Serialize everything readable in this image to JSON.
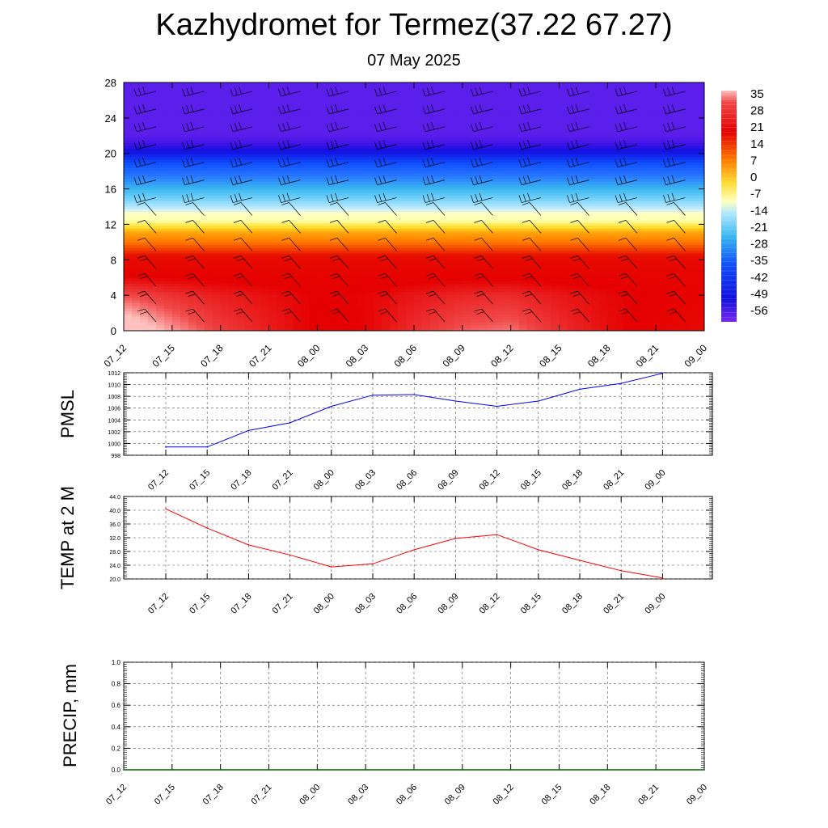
{
  "title": "Kazhydromet for Termez(37.22 67.27)",
  "subtitle": "07 May 2025",
  "chart_data": [
    {
      "type": "heatmap",
      "description": "Time-height cross-section of temperature with wind barbs",
      "x_tick_labels": [
        "07_12",
        "07_15",
        "07_18",
        "07_21",
        "08_00",
        "08_03",
        "08_06",
        "08_09",
        "08_12",
        "08_15",
        "08_18",
        "08_21",
        "09_00"
      ],
      "y_ticks": [
        0,
        4,
        8,
        12,
        16,
        20,
        24,
        28
      ],
      "ylim": [
        0,
        28
      ],
      "colorbar": {
        "labels": [
          "35",
          "28",
          "21",
          "14",
          "7",
          "0",
          "-7",
          "-14",
          "-21",
          "-28",
          "-35",
          "-42",
          "-49",
          "-56"
        ],
        "range": [
          -60,
          38
        ]
      },
      "temperature_profile_by_level": [
        {
          "level": 0,
          "temp": 30
        },
        {
          "level": 4,
          "temp": 28
        },
        {
          "level": 8,
          "temp": 22
        },
        {
          "level": 11,
          "temp": 10
        },
        {
          "level": 13,
          "temp": -10
        },
        {
          "level": 16,
          "temp": -28
        },
        {
          "level": 19,
          "temp": -45
        },
        {
          "level": 21,
          "temp": -56
        },
        {
          "level": 22,
          "temp": -58
        },
        {
          "level": 28,
          "temp": -58
        }
      ],
      "surface_temp_by_time": [
        40.0,
        34.5,
        29.9,
        26.9,
        23.5,
        24.3,
        28.4,
        31.8,
        32.8,
        28.5,
        25.3,
        22.4,
        20.2
      ]
    },
    {
      "type": "line",
      "ylabel": "PMSL",
      "x_tick_labels": [
        "07_12",
        "07_15",
        "07_18",
        "07_21",
        "08_00",
        "08_03",
        "08_06",
        "08_09",
        "08_12",
        "08_15",
        "08_18",
        "08_21",
        "09_00"
      ],
      "y_tick_labels": [
        "998",
        "1000",
        "1002",
        "1004",
        "1006",
        "1008",
        "1010",
        "1012"
      ],
      "ylim": [
        998,
        1012
      ],
      "series": [
        {
          "color": "#0000ff",
          "values": [
            999.4,
            999.4,
            1002.2,
            1003.5,
            1006.3,
            1008.2,
            1008.3,
            1007.2,
            1006.3,
            1007.2,
            1009.2,
            1010.2,
            1011.9
          ]
        }
      ]
    },
    {
      "type": "line",
      "ylabel": "TEMP at 2 M",
      "x_tick_labels": [
        "07_12",
        "07_15",
        "07_18",
        "07_21",
        "08_00",
        "08_03",
        "08_06",
        "08_09",
        "08_12",
        "08_15",
        "08_18",
        "08_21",
        "09_00"
      ],
      "y_tick_labels": [
        "20.0",
        "24.0",
        "28.0",
        "32.0",
        "36.0",
        "40.0",
        "44.0"
      ],
      "ylim": [
        20,
        44
      ],
      "series": [
        {
          "color": "#ff0000",
          "values": [
            40.4,
            34.8,
            29.9,
            27.0,
            23.5,
            24.4,
            28.5,
            31.8,
            32.9,
            28.5,
            25.4,
            22.4,
            20.3
          ]
        }
      ]
    },
    {
      "type": "line",
      "ylabel": "PRECIP, mm",
      "x_tick_labels": [
        "07_12",
        "07_15",
        "07_18",
        "07_21",
        "08_00",
        "08_03",
        "08_06",
        "08_09",
        "08_12",
        "08_15",
        "08_18",
        "08_21",
        "09_00"
      ],
      "y_tick_labels": [
        "0.0",
        "0.2",
        "0.4",
        "0.6",
        "0.8",
        "1.0"
      ],
      "ylim": [
        0,
        1
      ],
      "series": [
        {
          "color": "#006400",
          "values": [
            0,
            0,
            0,
            0,
            0,
            0,
            0,
            0,
            0,
            0,
            0,
            0,
            0
          ]
        }
      ]
    }
  ]
}
